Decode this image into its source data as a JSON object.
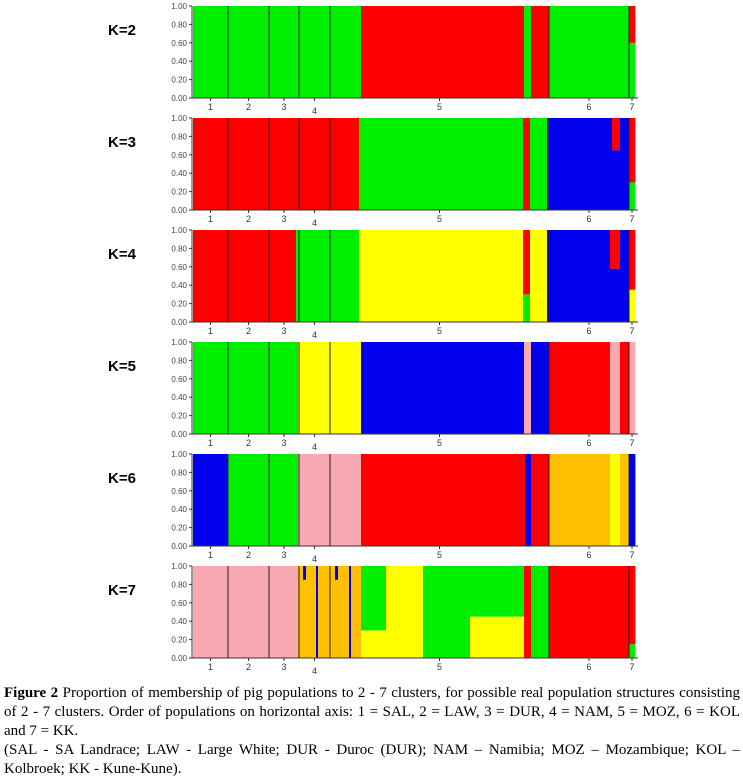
{
  "colors": {
    "red": "#ff0000",
    "green": "#00ee00",
    "blue": "#0000ee",
    "yellow": "#ffff00",
    "pink": "#f8a8b0",
    "orange": "#ffc000"
  },
  "chart_data": {
    "type": "bar",
    "subtype": "stacked-structure-plot",
    "ylim": [
      0,
      1
    ],
    "yticks": [
      "0.00",
      "0.20",
      "0.40",
      "0.60",
      "0.80",
      "1.00"
    ],
    "population_labels": [
      "1",
      "2",
      "3",
      "4",
      "5",
      "6",
      "7"
    ],
    "population_share": [
      35,
      41,
      30,
      31,
      219,
      80,
      6
    ],
    "panels": [
      {
        "label": "K=2",
        "segments": [
          {
            "w": 168,
            "s": [
              [
                "green",
                1
              ]
            ]
          },
          {
            "w": 163,
            "s": [
              [
                "red",
                1
              ]
            ]
          },
          {
            "w": 7,
            "s": [
              [
                "green",
                1
              ]
            ]
          },
          {
            "w": 18,
            "s": [
              [
                "red",
                1
              ]
            ]
          },
          {
            "w": 80,
            "s": [
              [
                "green",
                1
              ]
            ]
          },
          {
            "w": 6,
            "s": [
              [
                "green",
                0.6
              ],
              [
                "red",
                0.4
              ]
            ]
          }
        ]
      },
      {
        "label": "K=3",
        "segments": [
          {
            "w": 166,
            "s": [
              [
                "red",
                1
              ]
            ]
          },
          {
            "w": 164,
            "s": [
              [
                "green",
                1
              ]
            ]
          },
          {
            "w": 7,
            "s": [
              [
                "red",
                1
              ]
            ]
          },
          {
            "w": 17,
            "s": [
              [
                "green",
                1
              ]
            ]
          },
          {
            "w": 65,
            "s": [
              [
                "blue",
                1
              ]
            ]
          },
          {
            "w": 8,
            "s": [
              [
                "blue",
                0.65
              ],
              [
                "red",
                0.35
              ]
            ]
          },
          {
            "w": 9,
            "s": [
              [
                "blue",
                1
              ]
            ]
          },
          {
            "w": 6,
            "s": [
              [
                "green",
                0.3
              ],
              [
                "red",
                0.7
              ]
            ]
          }
        ]
      },
      {
        "label": "K=4",
        "segments": [
          {
            "w": 103,
            "s": [
              [
                "red",
                1
              ]
            ]
          },
          {
            "w": 63,
            "s": [
              [
                "green",
                1
              ]
            ]
          },
          {
            "w": 164,
            "s": [
              [
                "yellow",
                1
              ]
            ]
          },
          {
            "w": 7,
            "s": [
              [
                "green",
                0.3
              ],
              [
                "red",
                0.7
              ]
            ]
          },
          {
            "w": 17,
            "s": [
              [
                "yellow",
                1
              ]
            ]
          },
          {
            "w": 63,
            "s": [
              [
                "blue",
                1
              ]
            ]
          },
          {
            "w": 10,
            "s": [
              [
                "blue",
                0.58
              ],
              [
                "red",
                0.42
              ]
            ]
          },
          {
            "w": 9,
            "s": [
              [
                "blue",
                1
              ]
            ]
          },
          {
            "w": 6,
            "s": [
              [
                "yellow",
                0.35
              ],
              [
                "red",
                0.65
              ]
            ]
          }
        ]
      },
      {
        "label": "K=5",
        "segments": [
          {
            "w": 105,
            "s": [
              [
                "green",
                1
              ]
            ]
          },
          {
            "w": 63,
            "s": [
              [
                "yellow",
                1
              ]
            ]
          },
          {
            "w": 163,
            "s": [
              [
                "blue",
                1
              ]
            ]
          },
          {
            "w": 7,
            "s": [
              [
                "pink",
                1
              ]
            ]
          },
          {
            "w": 18,
            "s": [
              [
                "blue",
                1
              ]
            ]
          },
          {
            "w": 61,
            "s": [
              [
                "red",
                1
              ]
            ]
          },
          {
            "w": 10,
            "s": [
              [
                "pink",
                1
              ]
            ]
          },
          {
            "w": 9,
            "s": [
              [
                "red",
                1
              ]
            ]
          },
          {
            "w": 6,
            "s": [
              [
                "pink",
                1
              ]
            ]
          }
        ]
      },
      {
        "label": "K=6",
        "segments": [
          {
            "w": 35,
            "s": [
              [
                "blue",
                1
              ]
            ]
          },
          {
            "w": 70,
            "s": [
              [
                "green",
                1
              ]
            ]
          },
          {
            "w": 63,
            "s": [
              [
                "pink",
                1
              ]
            ]
          },
          {
            "w": 164,
            "s": [
              [
                "red",
                1
              ]
            ]
          },
          {
            "w": 6,
            "s": [
              [
                "blue",
                1
              ]
            ]
          },
          {
            "w": 18,
            "s": [
              [
                "red",
                1
              ]
            ]
          },
          {
            "w": 61,
            "s": [
              [
                "orange",
                1
              ]
            ]
          },
          {
            "w": 10,
            "s": [
              [
                "yellow",
                1
              ]
            ]
          },
          {
            "w": 9,
            "s": [
              [
                "orange",
                1
              ]
            ]
          },
          {
            "w": 6,
            "s": [
              [
                "blue",
                1
              ]
            ]
          }
        ]
      },
      {
        "label": "K=7",
        "segments": [
          {
            "w": 105,
            "s": [
              [
                "pink",
                1
              ]
            ]
          },
          {
            "w": 5,
            "s": [
              [
                "orange",
                1
              ]
            ]
          },
          {
            "w": 3,
            "s": [
              [
                "orange",
                0.85
              ],
              [
                "blue",
                0.15
              ]
            ]
          },
          {
            "w": 10,
            "s": [
              [
                "orange",
                1
              ]
            ]
          },
          {
            "w": 2,
            "s": [
              [
                "blue",
                1
              ]
            ]
          },
          {
            "w": 17,
            "s": [
              [
                "orange",
                1
              ]
            ]
          },
          {
            "w": 3,
            "s": [
              [
                "orange",
                0.85
              ],
              [
                "blue",
                0.15
              ]
            ]
          },
          {
            "w": 11,
            "s": [
              [
                "orange",
                1
              ]
            ]
          },
          {
            "w": 2,
            "s": [
              [
                "blue",
                1
              ]
            ]
          },
          {
            "w": 10,
            "s": [
              [
                "orange",
                1
              ]
            ]
          },
          {
            "w": 25,
            "s": [
              [
                "yellow",
                0.3
              ],
              [
                "green",
                0.7
              ]
            ]
          },
          {
            "w": 37,
            "s": [
              [
                "yellow",
                1
              ]
            ]
          },
          {
            "w": 47,
            "s": [
              [
                "green",
                1
              ]
            ]
          },
          {
            "w": 54,
            "s": [
              [
                "yellow",
                0.45
              ],
              [
                "green",
                0.55
              ]
            ]
          },
          {
            "w": 7,
            "s": [
              [
                "red",
                1
              ]
            ]
          },
          {
            "w": 18,
            "s": [
              [
                "green",
                1
              ]
            ]
          },
          {
            "w": 80,
            "s": [
              [
                "red",
                1
              ]
            ]
          },
          {
            "w": 6,
            "s": [
              [
                "green",
                0.15
              ],
              [
                "red",
                0.85
              ]
            ]
          }
        ]
      }
    ]
  },
  "caption": {
    "figure_label": "Figure 2",
    "text": " Proportion of membership of pig populations to 2 - 7 clusters, for possible real population structures consisting of 2 - 7 clusters. Order of populations on horizontal axis: 1 = SAL, 2 = LAW, 3 = DUR, 4 = NAM, 5 = MOZ, 6 = KOL and 7 = KK.",
    "legend": "(SAL - SA Landrace; LAW - Large White; DUR - Duroc (DUR); NAM – Namibia; MOZ – Mozambique; KOL – Kolbroek; KK - Kune-Kune)."
  }
}
